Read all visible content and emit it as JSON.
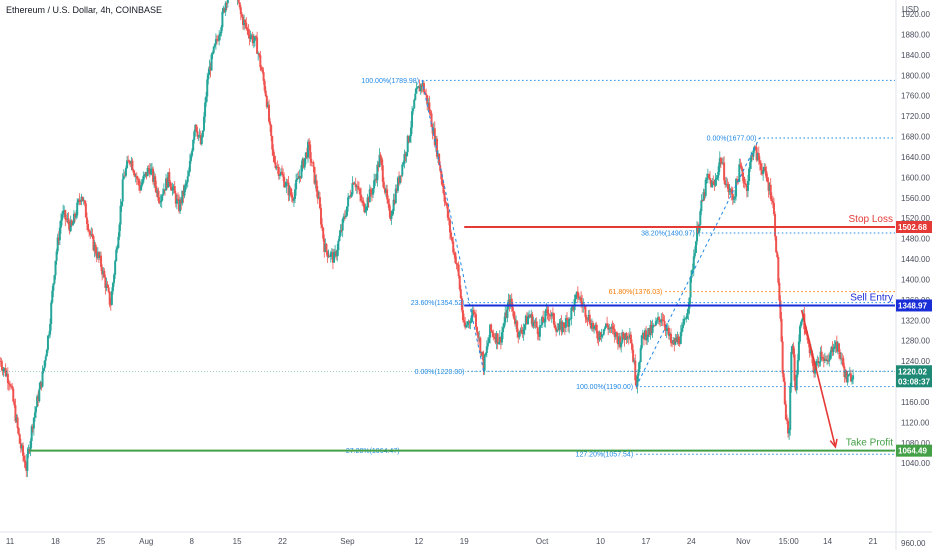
{
  "colors": {
    "up": "#26a69a",
    "down": "#ef5350",
    "fib_blue": "#1e88e5",
    "fib_orange": "#f57c00",
    "stop_red": "#e53935",
    "entry_blue": "#1a2ed8",
    "tp_green": "#43a047",
    "price_teal": "#1e8a75",
    "axis_text": "#4a4f5c"
  },
  "chart_data": {
    "type": "candlestick",
    "title": "Ethereum / U.S. Dollar, 4h, COINBASE",
    "currency": "USD",
    "ylim": [
      960,
      1960
    ],
    "y_ticks": [
      1920,
      1880,
      1840,
      1800,
      1760,
      1720,
      1680,
      1640,
      1600,
      1560,
      1520,
      1480,
      1440,
      1400,
      1360,
      1320,
      1280,
      1240,
      1200,
      1160,
      1120,
      1080,
      1040
    ],
    "y_tick_labels": [
      "1920.00",
      "1880.00",
      "1840.00",
      "1800.00",
      "1760.00",
      "1720.00",
      "1680.00",
      "1640.00",
      "1600.00",
      "1560.00",
      "1520.00",
      "1480.00",
      "1440.00",
      "1400.00",
      "1360.00",
      "1320.00",
      "1280.00",
      "1240.00",
      "1200.00",
      "1160.00",
      "1120.00",
      "1080.00",
      "1040.00"
    ],
    "y_bottom_label": "960.00",
    "x_ticks": [
      {
        "label": "11",
        "day": 0
      },
      {
        "label": "18",
        "day": 7
      },
      {
        "label": "25",
        "day": 14
      },
      {
        "label": "Aug",
        "day": 21
      },
      {
        "label": "8",
        "day": 28
      },
      {
        "label": "15",
        "day": 35
      },
      {
        "label": "22",
        "day": 42
      },
      {
        "label": "Sep",
        "day": 52
      },
      {
        "label": "12",
        "day": 63
      },
      {
        "label": "19",
        "day": 70
      },
      {
        "label": "Oct",
        "day": 82
      },
      {
        "label": "10",
        "day": 91
      },
      {
        "label": "17",
        "day": 98
      },
      {
        "label": "24",
        "day": 105
      },
      {
        "label": "Nov",
        "day": 113
      },
      {
        "label": "15:00",
        "day": 120
      },
      {
        "label": "14",
        "day": 126
      },
      {
        "label": "21",
        "day": 133
      }
    ],
    "x_days": [
      -1.5,
      136
    ],
    "price_path": [
      [
        -1.5,
        1240
      ],
      [
        0,
        1200
      ],
      [
        1.5,
        1080
      ],
      [
        2.5,
        1030
      ],
      [
        3.5,
        1120
      ],
      [
        5,
        1210
      ],
      [
        6,
        1300
      ],
      [
        7,
        1440
      ],
      [
        8,
        1530
      ],
      [
        9.5,
        1500
      ],
      [
        11,
        1570
      ],
      [
        12.5,
        1480
      ],
      [
        14,
        1430
      ],
      [
        15.5,
        1350
      ],
      [
        16.5,
        1470
      ],
      [
        17.5,
        1600
      ],
      [
        18.5,
        1640
      ],
      [
        20,
        1580
      ],
      [
        21.5,
        1620
      ],
      [
        23,
        1560
      ],
      [
        24.5,
        1600
      ],
      [
        26,
        1540
      ],
      [
        27.5,
        1600
      ],
      [
        28.5,
        1710
      ],
      [
        29.5,
        1660
      ],
      [
        30.5,
        1800
      ],
      [
        31.5,
        1850
      ],
      [
        32.5,
        1900
      ],
      [
        33.5,
        1960
      ],
      [
        34.5,
        1990
      ],
      [
        35.5,
        1920
      ],
      [
        36.5,
        1890
      ],
      [
        38,
        1860
      ],
      [
        39.5,
        1760
      ],
      [
        40.5,
        1640
      ],
      [
        42,
        1600
      ],
      [
        43.5,
        1560
      ],
      [
        45,
        1620
      ],
      [
        46,
        1660
      ],
      [
        47.5,
        1560
      ],
      [
        48.5,
        1460
      ],
      [
        50,
        1440
      ],
      [
        51.5,
        1520
      ],
      [
        53,
        1600
      ],
      [
        54.5,
        1540
      ],
      [
        56,
        1580
      ],
      [
        57,
        1640
      ],
      [
        58.5,
        1520
      ],
      [
        60,
        1600
      ],
      [
        61.5,
        1680
      ],
      [
        62.5,
        1760
      ],
      [
        63.5,
        1785
      ],
      [
        64.5,
        1740
      ],
      [
        66,
        1640
      ],
      [
        67,
        1560
      ],
      [
        68,
        1480
      ],
      [
        69,
        1420
      ],
      [
        70,
        1300
      ],
      [
        71.5,
        1340
      ],
      [
        73,
        1230
      ],
      [
        74,
        1300
      ],
      [
        75.5,
        1280
      ],
      [
        77,
        1360
      ],
      [
        78.5,
        1290
      ],
      [
        80,
        1330
      ],
      [
        81.5,
        1300
      ],
      [
        83,
        1340
      ],
      [
        84.5,
        1300
      ],
      [
        86,
        1320
      ],
      [
        87.5,
        1370
      ],
      [
        89,
        1330
      ],
      [
        90.5,
        1290
      ],
      [
        92,
        1310
      ],
      [
        94,
        1280
      ],
      [
        95.5,
        1300
      ],
      [
        96.5,
        1200
      ],
      [
        97.5,
        1290
      ],
      [
        99,
        1300
      ],
      [
        100.5,
        1330
      ],
      [
        102,
        1270
      ],
      [
        103.5,
        1290
      ],
      [
        104.5,
        1350
      ],
      [
        105.5,
        1460
      ],
      [
        106.5,
        1540
      ],
      [
        107.5,
        1600
      ],
      [
        108.5,
        1580
      ],
      [
        109.5,
        1640
      ],
      [
        110.5,
        1580
      ],
      [
        111.5,
        1560
      ],
      [
        112.5,
        1620
      ],
      [
        113.5,
        1580
      ],
      [
        114.5,
        1660
      ],
      [
        115.5,
        1630
      ],
      [
        116.5,
        1600
      ],
      [
        117.5,
        1560
      ],
      [
        118,
        1480
      ],
      [
        118.5,
        1380
      ],
      [
        119,
        1240
      ],
      [
        119.5,
        1140
      ],
      [
        120,
        1080
      ],
      [
        120.5,
        1300
      ],
      [
        121,
        1180
      ],
      [
        122,
        1340
      ],
      [
        123,
        1270
      ],
      [
        124,
        1220
      ],
      [
        125,
        1260
      ],
      [
        126,
        1230
      ],
      [
        127,
        1280
      ],
      [
        128,
        1250
      ],
      [
        129,
        1200
      ],
      [
        130,
        1220
      ]
    ],
    "fib_levels": [
      {
        "label": "100.00%(1789.98)",
        "price": 1789.98,
        "day_from": 63.5,
        "color": "fib_blue"
      },
      {
        "label": "0.00%(1677.00)",
        "price": 1677.0,
        "day_from": 115.5,
        "color": "fib_blue"
      },
      {
        "label": "38.20%(1490.97)",
        "price": 1490.97,
        "day_from": 106,
        "color": "fib_blue"
      },
      {
        "label": "61.80%(1376.03)",
        "price": 1376.03,
        "day_from": 101,
        "color": "fib_orange"
      },
      {
        "label": "23.60%(1354.52)",
        "price": 1354.52,
        "day_from": 70.5,
        "color": "fib_blue"
      },
      {
        "label": "0.00%(1220.00)",
        "price": 1220.0,
        "day_from": 70.5,
        "color": "fib_blue"
      },
      {
        "label": "100.00%(1190.00)",
        "price": 1190.0,
        "day_from": 96.5,
        "color": "fib_blue"
      },
      {
        "label": "127.20%(1057.54)",
        "price": 1057.54,
        "day_from": 96.5,
        "color": "fib_blue"
      },
      {
        "label": "27.20%(1064.47)",
        "price": 1064.47,
        "day_from": 60.5,
        "color": "fib_blue"
      }
    ],
    "horizontal_lines": [
      {
        "name": "stop-loss-line",
        "label": "Stop Loss",
        "price": 1502.68,
        "tag": "1502.68",
        "color": "stop_red",
        "day_from": 70
      },
      {
        "name": "sell-entry-line",
        "label": "Sell Entry",
        "price": 1348.97,
        "tag": "1348.97",
        "color": "entry_blue",
        "day_from": 70
      },
      {
        "name": "take-profit-line",
        "label": "Take Profit",
        "price": 1064.49,
        "tag": "1064.49",
        "color": "tp_green",
        "day_from": 3
      }
    ],
    "current_price": {
      "price": 1220.02,
      "tag": "1220.02",
      "timer": "03:08:37"
    }
  }
}
